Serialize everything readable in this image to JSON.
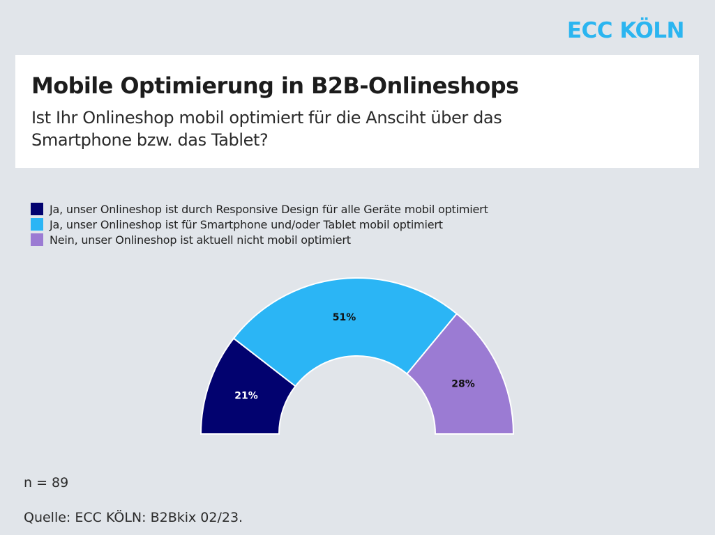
{
  "brand": "ECC KÖLN",
  "title": "Mobile Optimierung in B2B-Onlineshops",
  "subtitle": "Ist Ihr Onlineshop mobil optimiert für die Ansciht über das Smartphone bzw. das Tablet?",
  "sample_size": "n = 89",
  "source": "Quelle: ECC KÖLN: B2Bkix 02/23.",
  "colors": {
    "background": "#e1e5ea",
    "brand": "#2bb5f0"
  },
  "chart_data": {
    "type": "pie",
    "variant": "half-donut",
    "title": "",
    "legend_position": "top-left",
    "series": [
      {
        "name": "Ja, unser Onlineshop ist durch Responsive Design für alle Geräte mobil optimiert",
        "value": 21,
        "label": "21%",
        "color": "#02026f",
        "label_color": "#ffffff"
      },
      {
        "name": "Ja, unser Onlineshop ist für Smartphone und/oder Tablet mobil optimiert",
        "value": 51,
        "label": "51%",
        "color": "#2bb5f5",
        "label_color": "#111111"
      },
      {
        "name": "Nein, unser Onlineshop ist aktuell nicht mobil optimiert",
        "value": 28,
        "label": "28%",
        "color": "#9b7bd3",
        "label_color": "#111111"
      }
    ]
  }
}
